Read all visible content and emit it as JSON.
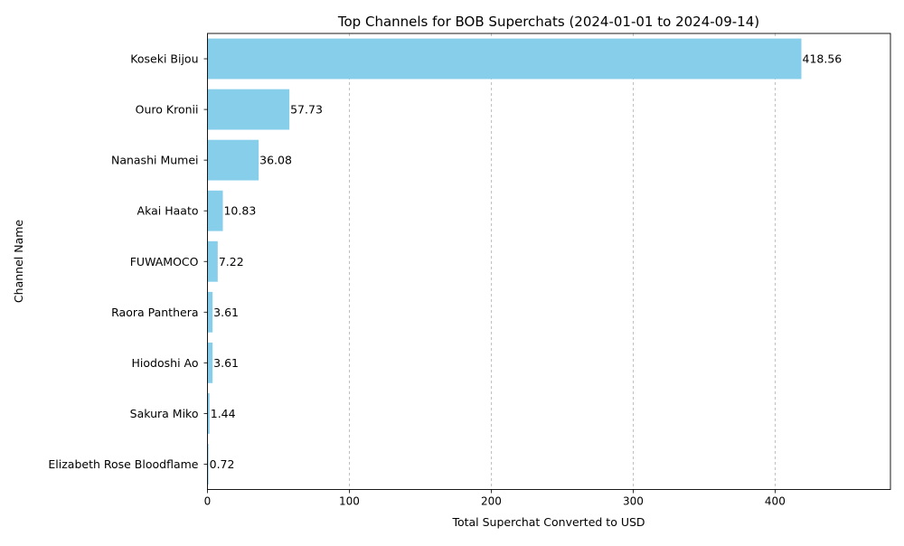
{
  "chart_data": {
    "type": "bar",
    "orientation": "horizontal",
    "title": "Top Channels for BOB Superchats (2024-01-01 to 2024-09-14)",
    "xlabel": "Total Superchat Converted to USD",
    "ylabel": "Channel Name",
    "categories": [
      "Koseki Bijou",
      "Ouro Kronii",
      "Nanashi Mumei",
      "Akai Haato",
      "FUWAMOCO",
      "Raora Panthera",
      "Hiodoshi Ao",
      "Sakura Miko",
      "Elizabeth Rose Bloodflame"
    ],
    "values": [
      418.56,
      57.73,
      36.08,
      10.83,
      7.22,
      3.61,
      3.61,
      1.44,
      0.72
    ],
    "value_labels": [
      "418.56",
      "57.73",
      "36.08",
      "10.83",
      "7.22",
      "3.61",
      "3.61",
      "1.44",
      "0.72"
    ],
    "xticks": [
      0,
      100,
      200,
      300,
      400
    ],
    "xtick_labels": [
      "0",
      "100",
      "200",
      "300",
      "400"
    ],
    "xlim": [
      0,
      481.3
    ],
    "grid": "x, dashed",
    "bar_color": "#87ceeb"
  }
}
